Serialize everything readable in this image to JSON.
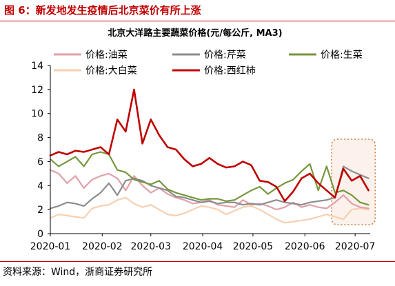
{
  "figure": {
    "title": "图 6：新发地发生疫情后北京菜价有所上涨",
    "source": "资料来源：Wind，浙商证券研究所"
  },
  "chart_data": {
    "type": "line",
    "title": "北京大洋路主要蔬菜价格(元/每公斤, MA3)",
    "xlabel": "",
    "ylabel": "",
    "ylim": [
      0,
      14
    ],
    "yticks": [
      "0",
      "2",
      "4",
      "6",
      "8",
      "10",
      "12",
      "14"
    ],
    "x_ticks": [
      "2020-01",
      "2020-02",
      "2020-03",
      "2020-04",
      "2020-05",
      "2020-06",
      "2020-07"
    ],
    "grid": false,
    "legend_position": "top",
    "annotation": "dotted box highlighting late-June price rise",
    "x": [
      "2020-01-01",
      "2020-01-06",
      "2020-01-11",
      "2020-01-16",
      "2020-01-21",
      "2020-01-26",
      "2020-01-31",
      "2020-02-05",
      "2020-02-10",
      "2020-02-15",
      "2020-02-20",
      "2020-02-25",
      "2020-03-01",
      "2020-03-06",
      "2020-03-11",
      "2020-03-16",
      "2020-03-21",
      "2020-03-26",
      "2020-03-31",
      "2020-04-05",
      "2020-04-10",
      "2020-04-15",
      "2020-04-20",
      "2020-04-25",
      "2020-04-30",
      "2020-05-05",
      "2020-05-10",
      "2020-05-15",
      "2020-05-20",
      "2020-05-25",
      "2020-05-30",
      "2020-06-04",
      "2020-06-09",
      "2020-06-14",
      "2020-06-19",
      "2020-06-24",
      "2020-06-29",
      "2020-07-04",
      "2020-07-09"
    ],
    "series": [
      {
        "name": "价格:油菜",
        "color": "#e0a0a8",
        "values": [
          5.3,
          5.0,
          4.2,
          4.8,
          3.8,
          4.5,
          4.8,
          5.0,
          4.6,
          3.6,
          4.8,
          4.0,
          3.4,
          3.8,
          3.3,
          3.0,
          2.8,
          2.5,
          2.6,
          2.8,
          2.4,
          2.3,
          2.2,
          2.8,
          2.4,
          2.5,
          2.3,
          2.0,
          2.2,
          2.6,
          2.2,
          2.4,
          2.2,
          2.1,
          2.6,
          3.2,
          2.5,
          2.2,
          2.1
        ]
      },
      {
        "name": "价格:芹菜",
        "color": "#8c8c8c",
        "values": [
          2.1,
          2.3,
          2.6,
          2.5,
          2.3,
          2.9,
          3.4,
          4.2,
          3.2,
          4.4,
          4.6,
          4.4,
          4.0,
          3.8,
          3.6,
          3.1,
          3.0,
          2.8,
          2.6,
          2.7,
          2.5,
          2.6,
          2.6,
          2.4,
          2.5,
          2.4,
          2.6,
          2.8,
          2.6,
          2.5,
          2.4,
          2.6,
          2.7,
          2.8,
          3.0,
          5.6,
          5.2,
          4.9,
          4.6
        ]
      },
      {
        "name": "价格:生菜",
        "color": "#76963c",
        "values": [
          6.2,
          5.6,
          6.0,
          6.4,
          5.6,
          6.6,
          6.8,
          6.6,
          5.3,
          5.1,
          4.5,
          4.3,
          4.1,
          4.4,
          3.7,
          3.4,
          3.2,
          3.0,
          2.8,
          2.9,
          2.9,
          2.7,
          2.8,
          3.2,
          3.6,
          3.9,
          3.3,
          3.8,
          4.2,
          4.5,
          5.2,
          5.8,
          3.6,
          5.6,
          3.4,
          3.6,
          3.2,
          2.6,
          2.4
        ]
      },
      {
        "name": "价格:大白菜",
        "color": "#f7d0b0",
        "values": [
          1.3,
          1.6,
          1.5,
          1.4,
          1.3,
          2.1,
          2.3,
          2.4,
          2.8,
          3.0,
          2.5,
          2.2,
          2.4,
          2.0,
          1.6,
          1.5,
          1.7,
          2.0,
          2.3,
          2.2,
          2.0,
          1.6,
          1.9,
          2.2,
          2.3,
          2.0,
          1.6,
          1.2,
          0.9,
          1.0,
          1.1,
          1.2,
          1.4,
          1.6,
          1.4,
          1.2,
          2.0,
          2.1,
          2.0
        ]
      },
      {
        "name": "价格:西红柿",
        "color": "#c00000",
        "values": [
          6.5,
          6.8,
          6.6,
          6.9,
          6.8,
          7.0,
          7.2,
          6.6,
          9.5,
          8.5,
          12.0,
          7.5,
          9.5,
          8.2,
          7.2,
          7.0,
          6.2,
          5.6,
          5.8,
          6.3,
          5.8,
          5.5,
          5.6,
          6.0,
          5.7,
          4.4,
          4.3,
          3.9,
          2.7,
          3.5,
          4.6,
          5.0,
          4.2,
          3.6,
          3.0,
          5.4,
          4.4,
          4.8,
          3.6
        ]
      }
    ]
  }
}
